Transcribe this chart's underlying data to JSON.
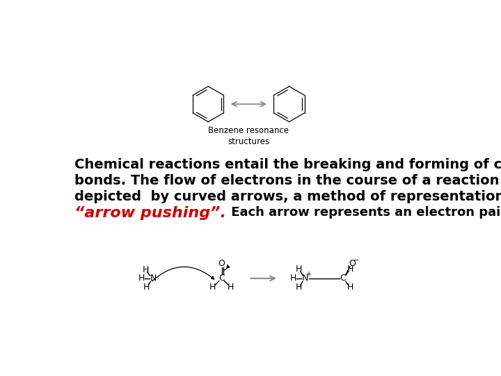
{
  "background_color": "#ffffff",
  "text_line1": "Chemical reactions entail the breaking and forming of covalent",
  "text_line2": "bonds. The flow of electrons in the course of a reaction can be",
  "text_line3": "depicted  by curved arrows, a method of representation called",
  "text_red": "“arrow pushing”.",
  "text_black_after_red": " Each arrow represents an electron pair.",
  "benzene_label": "Benzene resonance\nstructures",
  "text_fontsize": 14,
  "red_fontsize": 16,
  "after_red_fontsize": 13,
  "label_fontsize": 8.5,
  "mol_fontsize": 9
}
